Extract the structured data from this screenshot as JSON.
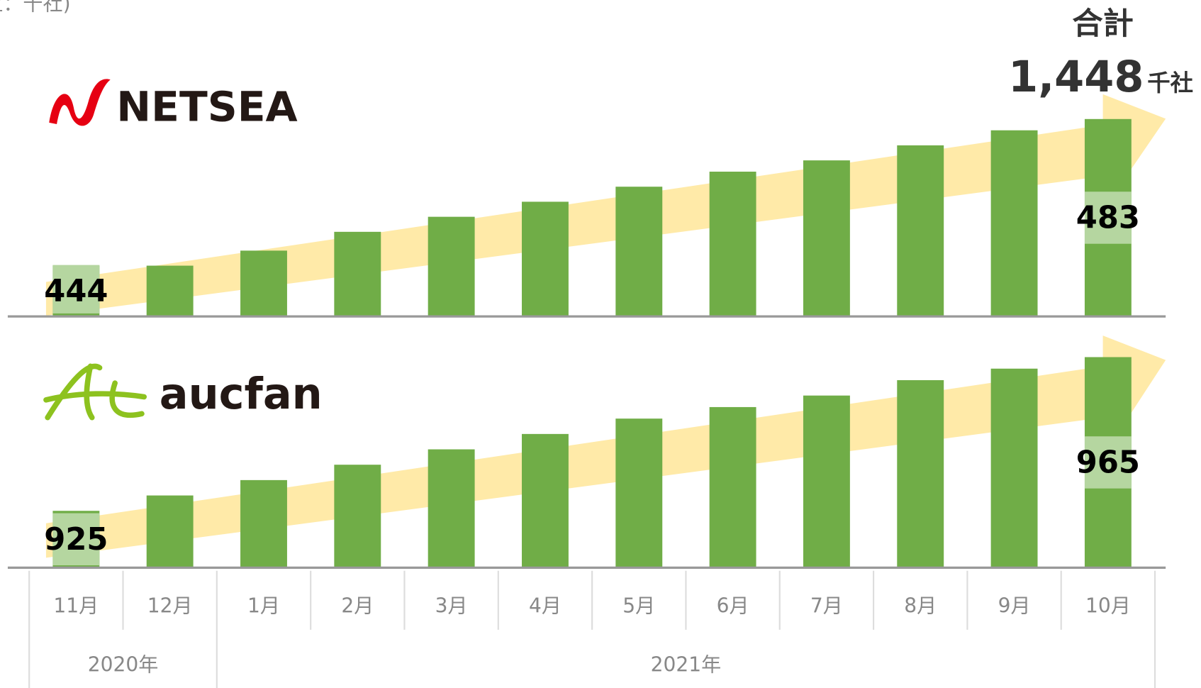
{
  "chart_data": {
    "type": "bar",
    "unit_note": "(単位：千社)",
    "categories": [
      "11月",
      "12月",
      "1月",
      "2月",
      "3月",
      "4月",
      "5月",
      "6月",
      "7月",
      "8月",
      "9月",
      "10月"
    ],
    "years": [
      {
        "label": "2020年",
        "span": 2
      },
      {
        "label": "2021年",
        "span": 10
      }
    ],
    "total": {
      "label": "合計",
      "value": 1448,
      "value_label": "1,448",
      "unit": "千社"
    },
    "series": [
      {
        "name": "NETSEA",
        "color": "#70ad47",
        "ylim": [
          430.5,
          490
        ],
        "values": [
          444,
          444,
          448,
          453,
          457,
          461,
          465,
          469,
          472,
          476,
          480,
          483
        ],
        "value_labels": [
          "444",
          null,
          null,
          null,
          null,
          null,
          null,
          null,
          null,
          null,
          null,
          "483"
        ]
      },
      {
        "name": "aucfan",
        "color": "#70ad47",
        "ylim": [
          910.2,
          972
        ],
        "values": [
          925,
          929,
          933,
          937,
          941,
          945,
          949,
          952,
          955,
          959,
          962,
          965
        ],
        "value_labels": [
          "925",
          null,
          null,
          null,
          null,
          null,
          null,
          null,
          null,
          null,
          null,
          "965"
        ]
      }
    ]
  }
}
